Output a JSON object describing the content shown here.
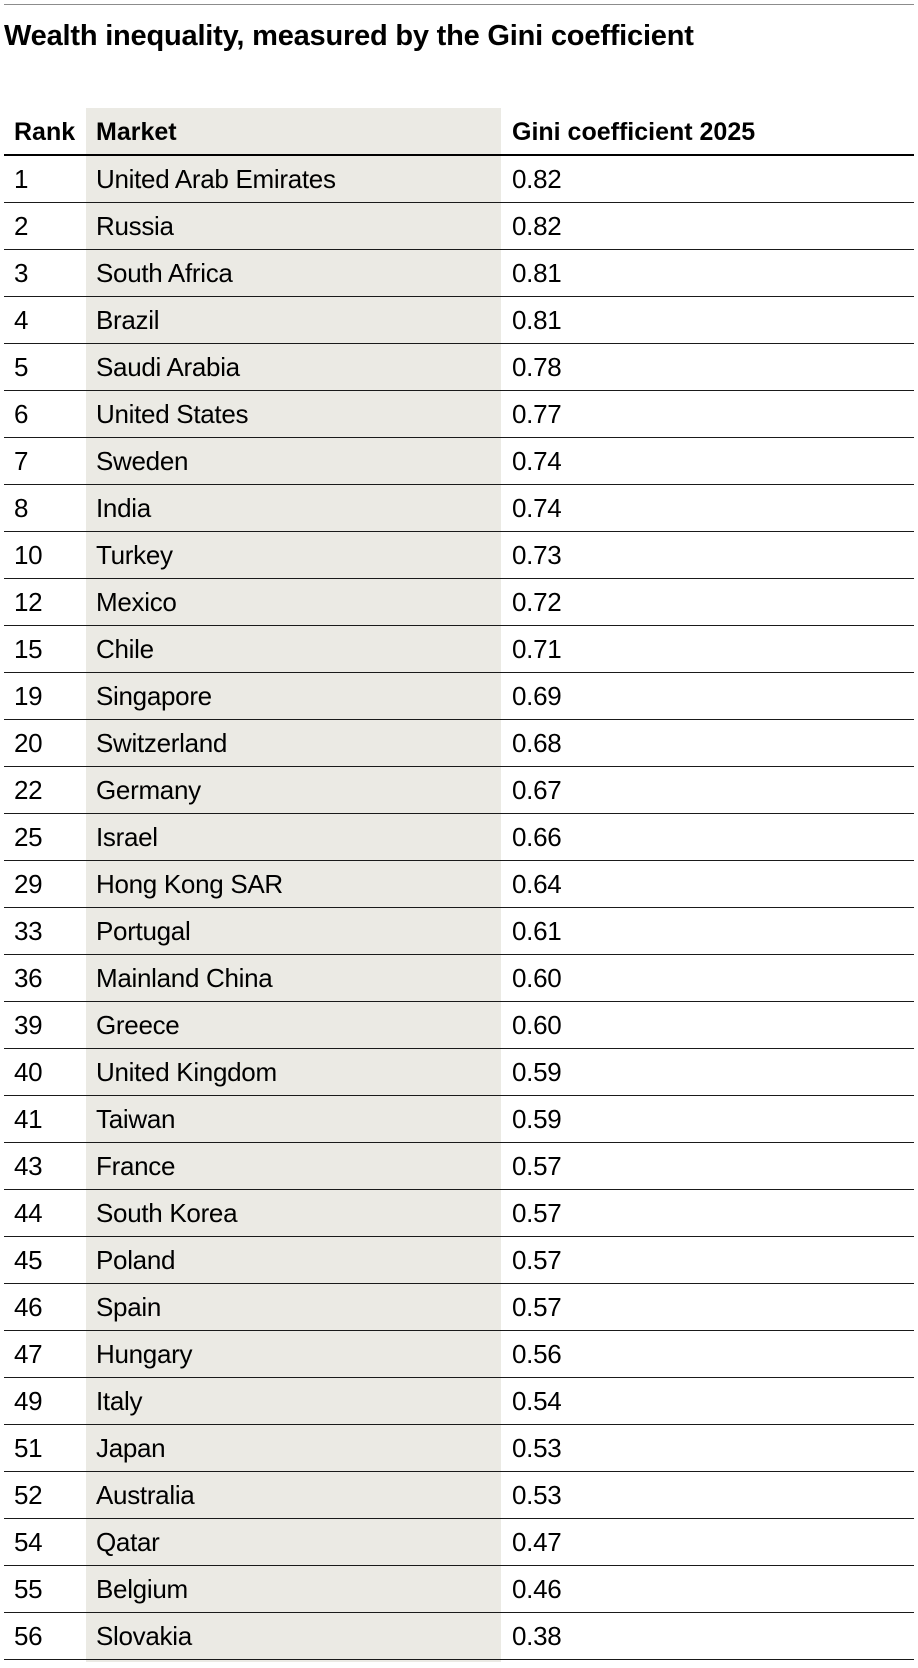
{
  "title": "Wealth inequality, measured by the Gini coefficient",
  "chart_data": {
    "type": "table",
    "title": "Wealth inequality, measured by the Gini coefficient",
    "columns": [
      "Rank",
      "Market",
      "Gini coefficient 2025"
    ],
    "rows": [
      {
        "rank": "1",
        "market": "United Arab Emirates",
        "value": "0.82"
      },
      {
        "rank": "2",
        "market": "Russia",
        "value": "0.82"
      },
      {
        "rank": "3",
        "market": "South Africa",
        "value": "0.81"
      },
      {
        "rank": "4",
        "market": "Brazil",
        "value": "0.81"
      },
      {
        "rank": "5",
        "market": "Saudi Arabia",
        "value": "0.78"
      },
      {
        "rank": "6",
        "market": "United States",
        "value": "0.77"
      },
      {
        "rank": "7",
        "market": "Sweden",
        "value": "0.74"
      },
      {
        "rank": "8",
        "market": "India",
        "value": "0.74"
      },
      {
        "rank": "10",
        "market": "Turkey",
        "value": "0.73"
      },
      {
        "rank": "12",
        "market": "Mexico",
        "value": "0.72"
      },
      {
        "rank": "15",
        "market": "Chile",
        "value": "0.71"
      },
      {
        "rank": "19",
        "market": "Singapore",
        "value": "0.69"
      },
      {
        "rank": "20",
        "market": "Switzerland",
        "value": "0.68"
      },
      {
        "rank": "22",
        "market": "Germany",
        "value": "0.67"
      },
      {
        "rank": "25",
        "market": "Israel",
        "value": "0.66"
      },
      {
        "rank": "29",
        "market": "Hong Kong SAR",
        "value": "0.64"
      },
      {
        "rank": "33",
        "market": "Portugal",
        "value": "0.61"
      },
      {
        "rank": "36",
        "market": "Mainland China",
        "value": "0.60"
      },
      {
        "rank": "39",
        "market": "Greece",
        "value": "0.60"
      },
      {
        "rank": "40",
        "market": "United Kingdom",
        "value": "0.59"
      },
      {
        "rank": "41",
        "market": "Taiwan",
        "value": "0.59"
      },
      {
        "rank": "43",
        "market": "France",
        "value": "0.57"
      },
      {
        "rank": "44",
        "market": "South Korea",
        "value": "0.57"
      },
      {
        "rank": "45",
        "market": "Poland",
        "value": "0.57"
      },
      {
        "rank": "46",
        "market": "Spain",
        "value": "0.57"
      },
      {
        "rank": "47",
        "market": "Hungary",
        "value": "0.56"
      },
      {
        "rank": "49",
        "market": "Italy",
        "value": "0.54"
      },
      {
        "rank": "51",
        "market": "Japan",
        "value": "0.53"
      },
      {
        "rank": "52",
        "market": "Australia",
        "value": "0.53"
      },
      {
        "rank": "54",
        "market": "Qatar",
        "value": "0.47"
      },
      {
        "rank": "55",
        "market": "Belgium",
        "value": "0.46"
      },
      {
        "rank": "56",
        "market": "Slovakia",
        "value": "0.38"
      }
    ]
  },
  "colors": {
    "market_column_background": "#ebeae4",
    "rule": "#1a1a1a",
    "text": "#000000"
  }
}
